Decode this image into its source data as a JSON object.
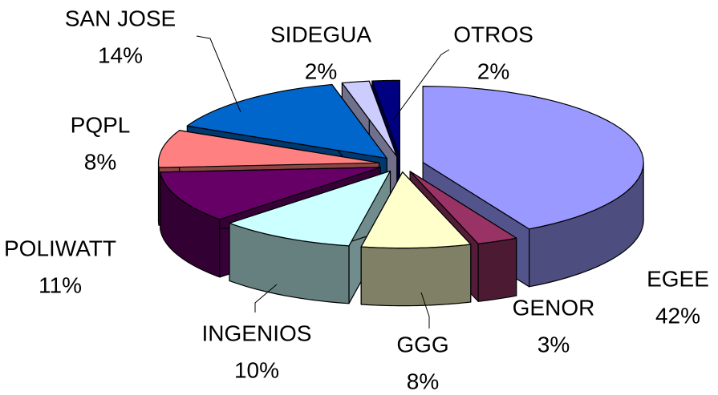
{
  "chart_data": {
    "type": "pie3d",
    "categories": [
      "EGEE",
      "GENOR",
      "GGG",
      "INGENIOS",
      "POLIWATT",
      "PQPL",
      "SAN JOSE",
      "SIDEGUA",
      "OTROS"
    ],
    "values": [
      42,
      3,
      8,
      10,
      11,
      8,
      14,
      2,
      2
    ],
    "value_labels": [
      "42%",
      "3%",
      "8%",
      "10%",
      "11%",
      "8%",
      "14%",
      "2%",
      "2%"
    ],
    "colors": [
      "#9999ff",
      "#993366",
      "#ffffcc",
      "#ccffff",
      "#660066",
      "#ff8080",
      "#0066cc",
      "#ccccff",
      "#000080"
    ]
  }
}
